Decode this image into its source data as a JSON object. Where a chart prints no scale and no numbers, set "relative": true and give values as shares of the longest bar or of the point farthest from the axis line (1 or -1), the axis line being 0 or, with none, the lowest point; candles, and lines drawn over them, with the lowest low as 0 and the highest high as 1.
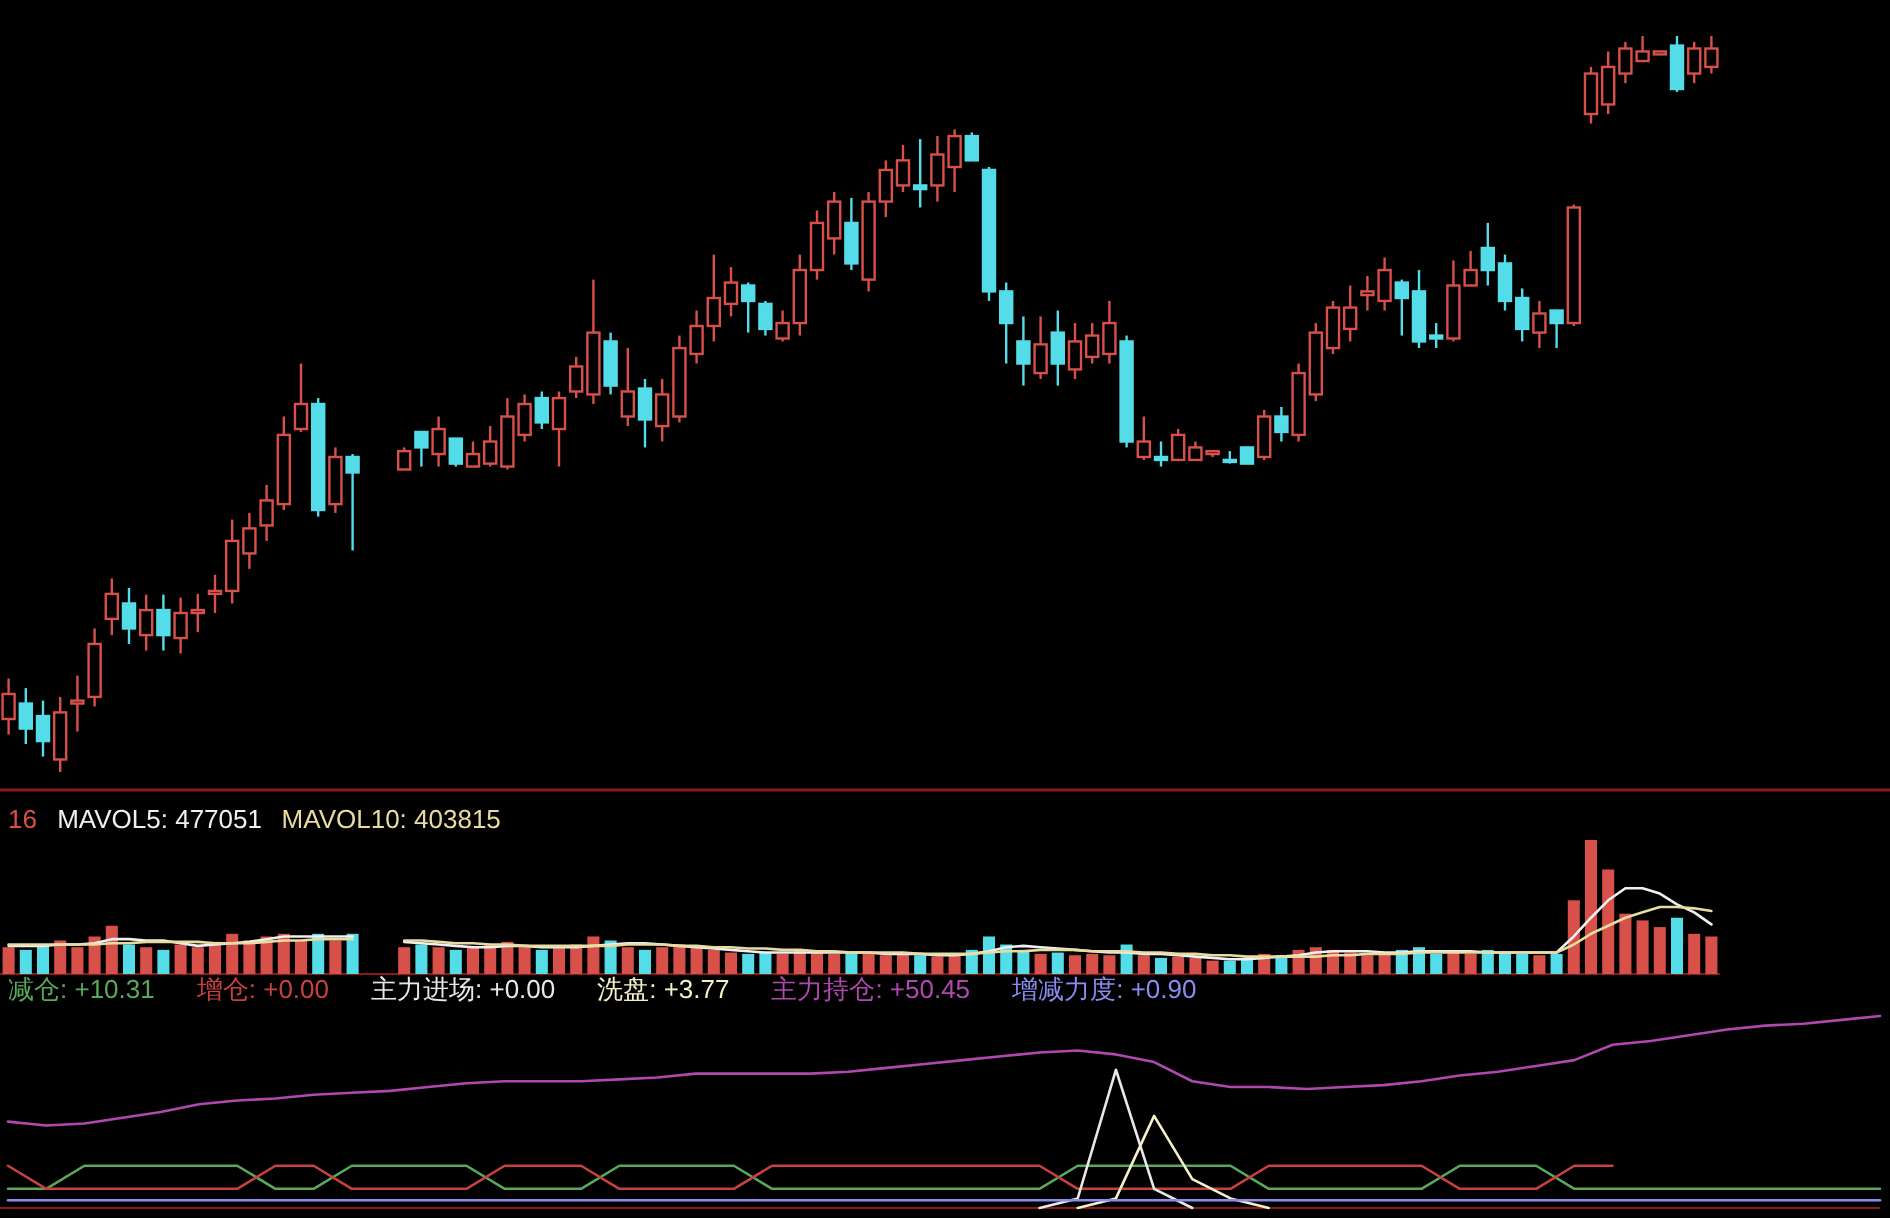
{
  "chart_data": [
    {
      "type": "candlestick",
      "relative": true,
      "colors": [
        "#d8504a",
        "#54dce8",
        "#54dce8",
        "#d8504a",
        "#d8504a",
        "#d8504a",
        "#d8504a",
        "#54dce8",
        "#d8504a",
        "#54dce8",
        "#d8504a",
        "#d8504a",
        "#d8504a",
        "#d8504a",
        "#d8504a",
        "#d8504a",
        "#d8504a",
        "#d8504a",
        "#54dce8",
        "#d8504a",
        "#54dce8",
        null,
        null,
        "#d8504a",
        "#54dce8",
        "#d8504a",
        "#54dce8",
        "#d8504a",
        "#d8504a",
        "#d8504a",
        "#d8504a",
        "#54dce8",
        "#d8504a",
        "#d8504a",
        "#d8504a",
        "#54dce8",
        "#d8504a",
        "#54dce8",
        "#d8504a",
        "#d8504a",
        "#d8504a",
        "#d8504a",
        "#d8504a",
        "#54dce8",
        "#54dce8",
        "#d8504a",
        "#d8504a",
        "#d8504a",
        "#d8504a",
        "#54dce8",
        "#d8504a",
        "#d8504a",
        "#d8504a",
        "#54dce8",
        "#d8504a",
        "#d8504a",
        "#54dce8",
        "#54dce8",
        "#54dce8",
        "#54dce8",
        "#d8504a",
        "#54dce8",
        "#d8504a",
        "#d8504a",
        "#d8504a",
        "#54dce8",
        "#d8504a",
        "#54dce8",
        "#d8504a",
        "#d8504a",
        "#d8504a",
        "#54dce8",
        "#54dce8",
        "#d8504a",
        "#54dce8",
        "#d8504a",
        "#d8504a",
        "#d8504a",
        "#d8504a",
        "#d8504a",
        "#d8504a",
        "#54dce8",
        "#54dce8",
        "#54dce8",
        "#d8504a",
        "#d8504a",
        "#54dce8",
        "#54dce8",
        "#54dce8",
        "#d8504a",
        "#54dce8",
        "#d8504a",
        "#d8504a",
        "#d8504a",
        "#d8504a",
        "#d8504a",
        "#d8504a",
        "#54dce8",
        "#d8504a",
        "#d8504a"
      ],
      "categories": [
        null,
        null,
        null,
        null,
        null,
        null,
        null,
        null,
        null,
        null,
        null,
        null,
        null,
        null,
        null,
        null,
        null,
        null,
        null,
        null,
        null,
        null,
        null,
        null,
        null,
        null,
        null,
        null,
        null,
        null,
        null,
        null,
        null,
        null,
        null,
        null,
        null,
        null,
        null,
        null,
        null,
        null,
        null,
        null,
        null,
        null,
        null,
        null,
        null,
        null,
        null,
        null,
        null,
        null,
        null,
        null,
        null,
        null,
        null,
        null,
        null,
        null,
        null,
        null,
        null,
        null,
        null,
        null,
        null,
        null,
        null,
        null,
        null,
        null,
        null,
        null,
        null,
        null,
        null,
        null,
        null,
        null,
        null,
        null,
        null,
        null,
        null,
        null,
        null,
        null,
        null,
        null,
        null,
        null,
        null,
        null,
        null,
        null,
        null,
        null
      ],
      "ohlc": [
        [
          0.072,
          0.127,
          0.051,
          0.106
        ],
        [
          0.093,
          0.114,
          0.038,
          0.059
        ],
        [
          0.076,
          0.097,
          0.021,
          0.042
        ],
        [
          0.017,
          0.102,
          0,
          0.081
        ],
        [
          0.093,
          0.131,
          0.055,
          0.097
        ],
        [
          0.102,
          0.195,
          0.089,
          0.174
        ],
        [
          0.208,
          0.263,
          0.186,
          0.242
        ],
        [
          0.229,
          0.25,
          0.174,
          0.195
        ],
        [
          0.186,
          0.241,
          0.165,
          0.22
        ],
        [
          0.22,
          0.241,
          0.165,
          0.186
        ],
        [
          0.182,
          0.237,
          0.161,
          0.216
        ],
        [
          0.216,
          0.242,
          0.19,
          0.22
        ],
        [
          0.242,
          0.268,
          0.216,
          0.246
        ],
        [
          0.246,
          0.343,
          0.229,
          0.314
        ],
        [
          0.297,
          0.352,
          0.276,
          0.331
        ],
        [
          0.335,
          0.39,
          0.314,
          0.369
        ],
        [
          0.364,
          0.483,
          0.356,
          0.458
        ],
        [
          0.466,
          0.555,
          0.462,
          0.5
        ],
        [
          0.5,
          0.508,
          0.347,
          0.356
        ],
        [
          0.364,
          0.441,
          0.352,
          0.428
        ],
        [
          0.428,
          0.432,
          0.301,
          0.407
        ],
        null,
        null,
        [
          0.411,
          0.441,
          0.411,
          0.436
        ],
        [
          0.462,
          0.462,
          0.415,
          0.441
        ],
        [
          0.432,
          0.483,
          0.415,
          0.466
        ],
        [
          0.453,
          0.453,
          0.415,
          0.419
        ],
        [
          0.415,
          0.449,
          0.415,
          0.432
        ],
        [
          0.419,
          0.47,
          0.415,
          0.449
        ],
        [
          0.415,
          0.508,
          0.411,
          0.483
        ],
        [
          0.458,
          0.513,
          0.449,
          0.5
        ],
        [
          0.508,
          0.517,
          0.466,
          0.475
        ],
        [
          0.466,
          0.517,
          0.415,
          0.508
        ],
        [
          0.517,
          0.564,
          0.508,
          0.551
        ],
        [
          0.513,
          0.669,
          0.5,
          0.597
        ],
        [
          0.585,
          0.597,
          0.513,
          0.525
        ],
        [
          0.483,
          0.576,
          0.47,
          0.517
        ],
        [
          0.521,
          0.534,
          0.441,
          0.479
        ],
        [
          0.47,
          0.534,
          0.449,
          0.513
        ],
        [
          0.483,
          0.593,
          0.475,
          0.576
        ],
        [
          0.568,
          0.627,
          0.555,
          0.606
        ],
        [
          0.606,
          0.703,
          0.585,
          0.644
        ],
        [
          0.636,
          0.686,
          0.619,
          0.665
        ],
        [
          0.661,
          0.665,
          0.597,
          0.64
        ],
        [
          0.636,
          0.64,
          0.593,
          0.602
        ],
        [
          0.589,
          0.627,
          0.585,
          0.61
        ],
        [
          0.61,
          0.703,
          0.593,
          0.682
        ],
        [
          0.682,
          0.763,
          0.669,
          0.746
        ],
        [
          0.725,
          0.788,
          0.703,
          0.775
        ],
        [
          0.746,
          0.78,
          0.682,
          0.691
        ],
        [
          0.669,
          0.788,
          0.653,
          0.775
        ],
        [
          0.775,
          0.831,
          0.754,
          0.818
        ],
        [
          0.797,
          0.852,
          0.788,
          0.831
        ],
        [
          0.797,
          0.86,
          0.767,
          0.792
        ],
        [
          0.797,
          0.864,
          0.775,
          0.839
        ],
        [
          0.822,
          0.873,
          0.788,
          0.864
        ],
        [
          0.864,
          0.869,
          0.831,
          0.831
        ],
        [
          0.818,
          0.822,
          0.64,
          0.653
        ],
        [
          0.653,
          0.665,
          0.555,
          0.61
        ],
        [
          0.585,
          0.619,
          0.525,
          0.555
        ],
        [
          0.542,
          0.619,
          0.534,
          0.581
        ],
        [
          0.597,
          0.627,
          0.525,
          0.555
        ],
        [
          0.547,
          0.61,
          0.534,
          0.585
        ],
        [
          0.564,
          0.61,
          0.555,
          0.593
        ],
        [
          0.568,
          0.64,
          0.555,
          0.61
        ],
        [
          0.585,
          0.593,
          0.441,
          0.449
        ],
        [
          0.428,
          0.483,
          0.424,
          0.449
        ],
        [
          0.428,
          0.449,
          0.415,
          0.424
        ],
        [
          0.424,
          0.466,
          0.424,
          0.458
        ],
        [
          0.424,
          0.449,
          0.424,
          0.441
        ],
        [
          0.432,
          0.436,
          0.428,
          0.436
        ],
        [
          0.424,
          0.436,
          0.419,
          0.422
        ],
        [
          0.441,
          0.441,
          0.419,
          0.419
        ],
        [
          0.428,
          0.492,
          0.424,
          0.483
        ],
        [
          0.483,
          0.496,
          0.449,
          0.462
        ],
        [
          0.458,
          0.555,
          0.449,
          0.542
        ],
        [
          0.513,
          0.61,
          0.504,
          0.597
        ],
        [
          0.576,
          0.64,
          0.568,
          0.631
        ],
        [
          0.602,
          0.661,
          0.585,
          0.631
        ],
        [
          0.648,
          0.674,
          0.627,
          0.653
        ],
        [
          0.64,
          0.699,
          0.627,
          0.682
        ],
        [
          0.665,
          0.669,
          0.593,
          0.644
        ],
        [
          0.653,
          0.682,
          0.576,
          0.585
        ],
        [
          0.593,
          0.61,
          0.576,
          0.589
        ],
        [
          0.589,
          0.695,
          0.585,
          0.661
        ],
        [
          0.661,
          0.708,
          0.661,
          0.682
        ],
        [
          0.712,
          0.746,
          0.661,
          0.682
        ],
        [
          0.691,
          0.703,
          0.627,
          0.64
        ],
        [
          0.644,
          0.657,
          0.585,
          0.602
        ],
        [
          0.597,
          0.64,
          0.576,
          0.623
        ],
        [
          0.627,
          0.627,
          0.576,
          0.61
        ],
        [
          0.61,
          0.771,
          0.606,
          0.767
        ],
        [
          0.894,
          0.958,
          0.881,
          0.949
        ],
        [
          0.907,
          0.979,
          0.894,
          0.958
        ],
        [
          0.949,
          0.992,
          0.936,
          0.983
        ],
        [
          0.966,
          1,
          0.966,
          0.979
        ],
        [
          0.975,
          0.979,
          0.975,
          0.979
        ],
        [
          0.987,
          1,
          0.924,
          0.928
        ],
        [
          0.949,
          0.992,
          0.936,
          0.983
        ],
        [
          0.958,
          1,
          0.949,
          0.983
        ]
      ]
    },
    {
      "type": "bar",
      "relative": true,
      "annotations": [
        "16"
      ],
      "categories": [
        null,
        null,
        null,
        null,
        null,
        null,
        null,
        null,
        null,
        null,
        null,
        null,
        null,
        null,
        null,
        null,
        null,
        null,
        null,
        null,
        null,
        null,
        null,
        null,
        null,
        null,
        null,
        null,
        null,
        null,
        null,
        null,
        null,
        null,
        null,
        null,
        null,
        null,
        null,
        null,
        null,
        null,
        null,
        null,
        null,
        null,
        null,
        null,
        null,
        null,
        null,
        null,
        null,
        null,
        null,
        null,
        null,
        null,
        null,
        null,
        null,
        null,
        null,
        null,
        null,
        null,
        null,
        null,
        null,
        null,
        null,
        null,
        null,
        null,
        null,
        null,
        null,
        null,
        null,
        null,
        null,
        null,
        null,
        null,
        null,
        null,
        null,
        null,
        null,
        null,
        null,
        null,
        null,
        null,
        null,
        null,
        null,
        null,
        null,
        null
      ],
      "values": [
        0.2,
        0.18,
        0.22,
        0.25,
        0.2,
        0.28,
        0.36,
        0.22,
        0.2,
        0.18,
        0.22,
        0.2,
        0.24,
        0.3,
        0.25,
        0.28,
        0.3,
        0.25,
        0.3,
        0.25,
        0.3,
        null,
        null,
        0.2,
        0.22,
        0.2,
        0.18,
        0.2,
        0.22,
        0.24,
        0.2,
        0.18,
        0.2,
        0.22,
        0.28,
        0.25,
        0.2,
        0.18,
        0.2,
        0.22,
        0.2,
        0.18,
        0.16,
        0.15,
        0.16,
        0.15,
        0.18,
        0.17,
        0.15,
        0.16,
        0.15,
        0.14,
        0.15,
        0.14,
        0.13,
        0.15,
        0.18,
        0.28,
        0.22,
        0.18,
        0.15,
        0.16,
        0.14,
        0.15,
        0.14,
        0.22,
        0.14,
        0.12,
        0.13,
        0.12,
        0.1,
        0.1,
        0.12,
        0.15,
        0.14,
        0.18,
        0.2,
        0.18,
        0.16,
        0.14,
        0.15,
        0.18,
        0.2,
        0.15,
        0.16,
        0.15,
        0.18,
        0.16,
        0.15,
        0.14,
        0.15,
        0.55,
        1,
        0.78,
        0.45,
        0.4,
        0.35,
        0.42,
        0.3,
        0.28
      ],
      "colors": [
        "#d8504a",
        "#54dce8",
        "#54dce8",
        "#d8504a",
        "#d8504a",
        "#d8504a",
        "#d8504a",
        "#54dce8",
        "#d8504a",
        "#54dce8",
        "#d8504a",
        "#d8504a",
        "#d8504a",
        "#d8504a",
        "#d8504a",
        "#d8504a",
        "#d8504a",
        "#d8504a",
        "#54dce8",
        "#d8504a",
        "#54dce8",
        null,
        null,
        "#d8504a",
        "#54dce8",
        "#d8504a",
        "#54dce8",
        "#d8504a",
        "#d8504a",
        "#d8504a",
        "#d8504a",
        "#54dce8",
        "#d8504a",
        "#d8504a",
        "#d8504a",
        "#54dce8",
        "#d8504a",
        "#54dce8",
        "#d8504a",
        "#d8504a",
        "#d8504a",
        "#d8504a",
        "#d8504a",
        "#54dce8",
        "#54dce8",
        "#d8504a",
        "#d8504a",
        "#d8504a",
        "#d8504a",
        "#54dce8",
        "#d8504a",
        "#d8504a",
        "#d8504a",
        "#54dce8",
        "#d8504a",
        "#d8504a",
        "#54dce8",
        "#54dce8",
        "#54dce8",
        "#54dce8",
        "#d8504a",
        "#54dce8",
        "#d8504a",
        "#d8504a",
        "#d8504a",
        "#54dce8",
        "#d8504a",
        "#54dce8",
        "#d8504a",
        "#d8504a",
        "#d8504a",
        "#54dce8",
        "#54dce8",
        "#d8504a",
        "#54dce8",
        "#d8504a",
        "#d8504a",
        "#d8504a",
        "#d8504a",
        "#d8504a",
        "#d8504a",
        "#54dce8",
        "#54dce8",
        "#54dce8",
        "#d8504a",
        "#d8504a",
        "#54dce8",
        "#54dce8",
        "#54dce8",
        "#d8504a",
        "#54dce8",
        "#d8504a",
        "#d8504a",
        "#d8504a",
        "#d8504a",
        "#d8504a",
        "#d8504a",
        "#54dce8",
        "#d8504a",
        "#d8504a"
      ],
      "series": [
        {
          "type": "line",
          "name": "MAVOL5: 477051",
          "color": "#f0f0f0",
          "values": [
            0.21,
            0.21,
            0.21,
            0.22,
            0.22,
            0.23,
            0.26,
            0.26,
            0.25,
            0.25,
            0.23,
            0.21,
            0.22,
            0.23,
            0.24,
            0.26,
            0.28,
            0.28,
            0.28,
            0.28,
            0.28,
            null,
            null,
            0.24,
            0.23,
            0.22,
            0.21,
            0.2,
            0.2,
            0.21,
            0.21,
            0.2,
            0.2,
            0.2,
            0.21,
            0.22,
            0.23,
            0.23,
            0.22,
            0.21,
            0.2,
            0.19,
            0.18,
            0.17,
            0.16,
            0.16,
            0.16,
            0.16,
            0.16,
            0.16,
            0.16,
            0.15,
            0.15,
            0.15,
            0.14,
            0.14,
            0.15,
            0.17,
            0.2,
            0.21,
            0.2,
            0.19,
            0.18,
            0.17,
            0.16,
            0.16,
            0.15,
            0.15,
            0.14,
            0.13,
            0.12,
            0.11,
            0.11,
            0.12,
            0.13,
            0.14,
            0.16,
            0.17,
            0.17,
            0.17,
            0.16,
            0.16,
            0.17,
            0.17,
            0.17,
            0.17,
            0.16,
            0.16,
            0.16,
            0.16,
            0.16,
            0.28,
            0.42,
            0.55,
            0.64,
            0.64,
            0.6,
            0.52,
            0.46,
            0.37
          ]
        },
        {
          "type": "line",
          "name": "MAVOL10: 403815",
          "color": "#e8dca0",
          "values": [
            0.22,
            0.22,
            0.22,
            0.22,
            0.22,
            0.22,
            0.23,
            0.23,
            0.24,
            0.24,
            0.24,
            0.24,
            0.23,
            0.23,
            0.23,
            0.24,
            0.25,
            0.25,
            0.26,
            0.26,
            0.26,
            null,
            null,
            0.25,
            0.25,
            0.24,
            0.23,
            0.23,
            0.22,
            0.22,
            0.21,
            0.21,
            0.21,
            0.21,
            0.21,
            0.21,
            0.22,
            0.22,
            0.22,
            0.21,
            0.21,
            0.2,
            0.2,
            0.19,
            0.19,
            0.18,
            0.18,
            0.17,
            0.17,
            0.16,
            0.16,
            0.16,
            0.16,
            0.15,
            0.15,
            0.15,
            0.15,
            0.16,
            0.17,
            0.17,
            0.18,
            0.18,
            0.18,
            0.17,
            0.17,
            0.17,
            0.16,
            0.16,
            0.15,
            0.15,
            0.14,
            0.14,
            0.13,
            0.13,
            0.13,
            0.13,
            0.13,
            0.14,
            0.14,
            0.15,
            0.15,
            0.15,
            0.16,
            0.16,
            0.16,
            0.16,
            0.16,
            0.16,
            0.16,
            0.16,
            0.16,
            0.22,
            0.3,
            0.36,
            0.42,
            0.46,
            0.5,
            0.5,
            0.49,
            0.47
          ]
        }
      ]
    },
    {
      "type": "line",
      "relative": true,
      "categories": [
        null,
        null,
        null,
        null,
        null,
        null,
        null,
        null,
        null,
        null,
        null,
        null,
        null,
        null,
        null,
        null,
        null,
        null,
        null,
        null,
        null,
        null,
        null,
        null,
        null,
        null,
        null,
        null,
        null,
        null,
        null,
        null,
        null,
        null,
        null,
        null,
        null,
        null,
        null,
        null,
        null,
        null,
        null,
        null,
        null,
        null,
        null,
        null,
        null,
        null
      ],
      "series": [
        {
          "name": "减仓: +10.31",
          "color": "#5aa85a",
          "values": [
            0.1,
            0.1,
            0.22,
            0.22,
            0.22,
            0.22,
            0.22,
            0.1,
            0.1,
            0.22,
            0.22,
            0.22,
            0.22,
            0.1,
            0.1,
            0.1,
            0.22,
            0.22,
            0.22,
            0.22,
            0.1,
            0.1,
            0.1,
            0.1,
            0.1,
            0.1,
            0.1,
            0.1,
            0.22,
            0.22,
            0.22,
            0.22,
            0.22,
            0.1,
            0.1,
            0.1,
            0.1,
            0.1,
            0.22,
            0.22,
            0.22,
            0.1,
            0.1,
            0.1,
            0.1,
            0.1,
            0.1,
            0.1,
            0.1,
            0.1
          ]
        },
        {
          "name": "增仓: +0.00",
          "color": "#c84040",
          "values": [
            0.22,
            0.1,
            0.1,
            0.1,
            0.1,
            0.1,
            0.1,
            0.22,
            0.22,
            0.1,
            0.1,
            0.1,
            0.1,
            0.22,
            0.22,
            0.22,
            0.1,
            0.1,
            0.1,
            0.1,
            0.22,
            0.22,
            0.22,
            0.22,
            0.22,
            0.22,
            0.22,
            0.22,
            0.1,
            0.1,
            0.1,
            0.1,
            0.1,
            0.22,
            0.22,
            0.22,
            0.22,
            0.22,
            0.1,
            0.1,
            0.1,
            0.22,
            0.22,
            null,
            null,
            null,
            null,
            null,
            null,
            null
          ]
        },
        {
          "name": "主力进场: +0.00",
          "color": "#e8e8e8",
          "values": [
            null,
            null,
            null,
            null,
            null,
            null,
            null,
            null,
            null,
            null,
            null,
            null,
            null,
            null,
            null,
            null,
            null,
            null,
            null,
            null,
            null,
            null,
            null,
            null,
            null,
            null,
            null,
            0,
            0.05,
            0.72,
            0.1,
            0,
            null,
            null,
            null,
            null,
            null,
            null,
            null,
            null,
            null,
            null,
            null,
            null,
            null,
            null,
            null,
            null,
            null,
            null
          ]
        },
        {
          "name": "洗盘: +3.77",
          "color": "#f4f0c8",
          "values": [
            null,
            null,
            null,
            null,
            null,
            null,
            null,
            null,
            null,
            null,
            null,
            null,
            null,
            null,
            null,
            null,
            null,
            null,
            null,
            null,
            null,
            null,
            null,
            null,
            null,
            null,
            null,
            null,
            0,
            0.05,
            0.48,
            0.15,
            0.05,
            0,
            null,
            null,
            null,
            null,
            null,
            null,
            null,
            null,
            null,
            null,
            null,
            null,
            null,
            null,
            null,
            null
          ]
        },
        {
          "name": "主力持仓: +50.45",
          "color": "#b048b0",
          "values": [
            0.45,
            0.43,
            0.44,
            0.47,
            0.5,
            0.54,
            0.56,
            0.57,
            0.59,
            0.6,
            0.61,
            0.63,
            0.65,
            0.66,
            0.66,
            0.66,
            0.67,
            0.68,
            0.7,
            0.7,
            0.7,
            0.7,
            0.71,
            0.73,
            0.75,
            0.77,
            0.79,
            0.81,
            0.82,
            0.8,
            0.76,
            0.66,
            0.63,
            0.63,
            0.62,
            0.63,
            0.64,
            0.66,
            0.69,
            0.71,
            0.74,
            0.77,
            0.85,
            0.87,
            0.9,
            0.93,
            0.95,
            0.96,
            0.98,
            1
          ]
        },
        {
          "name": "增减力度: +0.90",
          "color": "#8a8cf0",
          "values": [
            0.04,
            0.04,
            0.04,
            0.04,
            0.04,
            0.04,
            0.04,
            0.04,
            0.04,
            0.04,
            0.04,
            0.04,
            0.04,
            0.04,
            0.04,
            0.04,
            0.04,
            0.04,
            0.04,
            0.04,
            0.04,
            0.04,
            0.04,
            0.04,
            0.04,
            0.04,
            0.04,
            0.04,
            0.04,
            0.04,
            0.04,
            0.04,
            0.04,
            0.04,
            0.04,
            0.04,
            0.04,
            0.04,
            0.04,
            0.04,
            0.04,
            0.04,
            0.04,
            0.04,
            0.04,
            0.04,
            0.04,
            0.04,
            0.04,
            0.04
          ]
        }
      ]
    }
  ]
}
